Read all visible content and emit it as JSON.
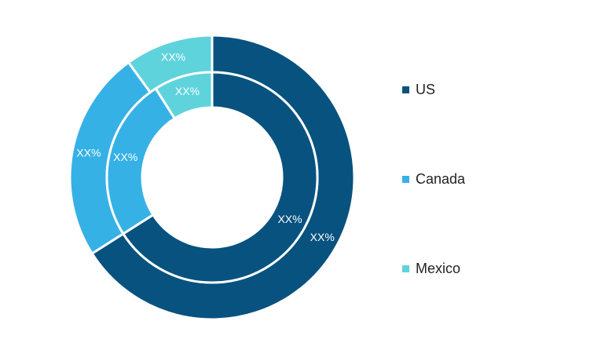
{
  "chart_data": {
    "type": "pie",
    "variant": "nested-donut",
    "categories": [
      "US",
      "Canada",
      "Mexico"
    ],
    "colors": [
      "#08527f",
      "#36b1e6",
      "#5fd3dc"
    ],
    "rings": [
      {
        "ring": "outer",
        "values": [
          66,
          24,
          10
        ],
        "labels": [
          "XX%",
          "XX%",
          "XX%"
        ]
      },
      {
        "ring": "inner",
        "values": [
          66,
          25,
          9
        ],
        "labels": [
          "XX%",
          "XX%",
          "XX%"
        ]
      }
    ],
    "legend_position": "right"
  },
  "legend": {
    "items": [
      {
        "label": "US",
        "color": "#08527f"
      },
      {
        "label": "Canada",
        "color": "#36b1e6"
      },
      {
        "label": "Mexico",
        "color": "#5fd3dc"
      }
    ]
  }
}
